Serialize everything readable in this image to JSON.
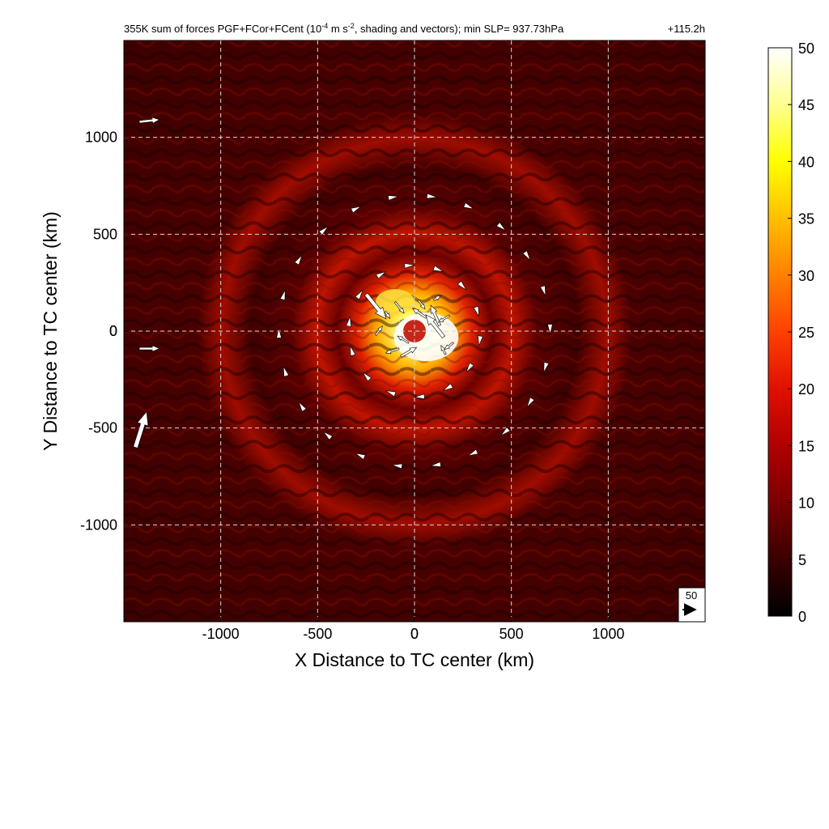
{
  "chart_data": {
    "type": "heatmap",
    "title": {
      "main": "355K sum of forces PGF+FCor+FCent (10",
      "exp1": "-4",
      "mid": " m s",
      "exp2": "-2",
      "tail": ", shading and vectors); min SLP= 937.73hPa",
      "time": "+115.2h"
    },
    "xlabel": "X Distance to TC center (km)",
    "ylabel": "Y Distance to TC center (km)",
    "xlim": [
      -1500,
      1500
    ],
    "ylim": [
      -1500,
      1500
    ],
    "xticks": [
      -1000,
      -500,
      0,
      500,
      1000
    ],
    "yticks": [
      -1000,
      -500,
      0,
      500,
      1000
    ],
    "grid": true,
    "colorbar": {
      "min": 0,
      "max": 50,
      "ticks": [
        0,
        5,
        10,
        15,
        20,
        25,
        30,
        35,
        40,
        45,
        50
      ],
      "colormap": [
        "#000000",
        "#3a0000",
        "#7a0000",
        "#b00000",
        "#e01000",
        "#ff4000",
        "#ff8000",
        "#ffbf00",
        "#ffff00",
        "#ffff90",
        "#ffffff"
      ]
    },
    "reference_vector": {
      "label": "50",
      "value": 50
    },
    "field_features": {
      "description_hint": "high values (30-50) concentrated in inner core r<250 km, rings of 10-20 near r~350 km and r~700 km, background 0-12",
      "core_peak": 50,
      "rings_km": [
        350,
        700
      ],
      "ring_values": [
        18,
        12
      ],
      "background": [
        0,
        12
      ]
    },
    "vectors": [
      {
        "x": -1420,
        "y": 1080,
        "u": 45,
        "v": 5
      },
      {
        "x": -1420,
        "y": -90,
        "u": 45,
        "v": 0
      },
      {
        "x": -1440,
        "y": -600,
        "u": 25,
        "v": 80
      },
      {
        "x": -250,
        "y": 190,
        "u": 45,
        "v": -55
      },
      {
        "x": -100,
        "y": 150,
        "u": 20,
        "v": -25
      },
      {
        "x": 150,
        "y": -30,
        "u": -40,
        "v": 50
      },
      {
        "x": 130,
        "y": 30,
        "u": -20,
        "v": 45
      },
      {
        "x": -70,
        "y": -130,
        "u": 35,
        "v": 20
      },
      {
        "x": -80,
        "y": -90,
        "u": -30,
        "v": -10
      },
      {
        "x": 60,
        "y": 70,
        "u": -30,
        "v": 20
      },
      {
        "x": -200,
        "y": -20,
        "u": 15,
        "v": 20
      },
      {
        "x": 180,
        "y": 80,
        "u": -25,
        "v": -15
      },
      {
        "x": 160,
        "y": -120,
        "u": -10,
        "v": 20
      },
      {
        "x": -30,
        "y": -60,
        "u": -25,
        "v": 15
      },
      {
        "x": 20,
        "y": 160,
        "u": 15,
        "v": -20
      },
      {
        "x": 100,
        "y": 160,
        "u": 15,
        "v": 10
      },
      {
        "x": -150,
        "y": 100,
        "u": 10,
        "v": -15
      },
      {
        "x": 200,
        "y": -60,
        "u": -20,
        "v": -15
      }
    ]
  }
}
